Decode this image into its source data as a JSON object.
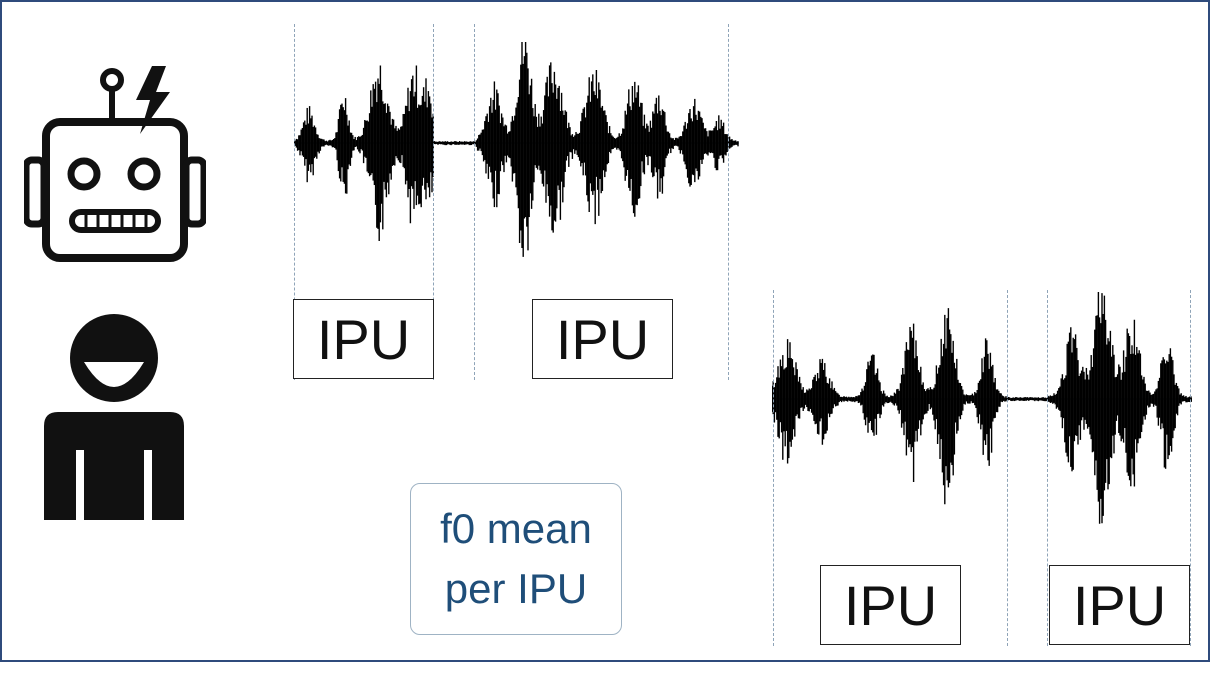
{
  "participants": {
    "system_icon": "robot-icon",
    "user_icon": "person-icon"
  },
  "system_segments": [
    {
      "label": "IPU"
    },
    {
      "label": "IPU"
    }
  ],
  "user_segments": [
    {
      "label": "IPU"
    },
    {
      "label": "IPU"
    }
  ],
  "feature": {
    "line1": "f0 mean",
    "line2": "per IPU",
    "color": "#1f4e79"
  },
  "colors": {
    "border": "#2f4b7c",
    "divider": "#8fa4b8",
    "waveform": "#000000"
  }
}
